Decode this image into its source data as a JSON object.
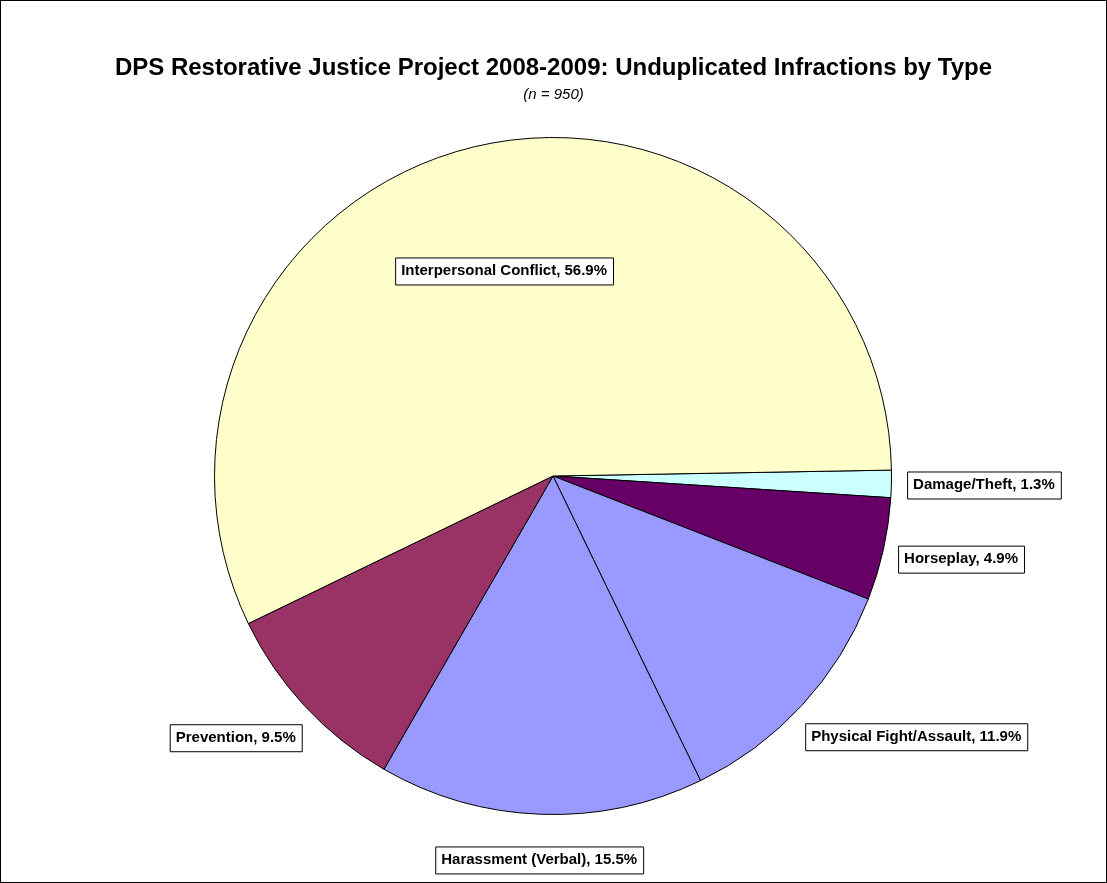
{
  "chart_data": {
    "type": "pie",
    "title": "DPS Restorative Justice Project 2008-2009: Unduplicated Infractions by Type",
    "subtitle": "(n = 950)",
    "categories": [
      "Damage/Theft",
      "Horseplay",
      "Physical Fight/Assault",
      "Harassment (Verbal)",
      "Prevention",
      "Interpersonal Conflict"
    ],
    "values": [
      1.3,
      4.9,
      11.9,
      15.5,
      9.5,
      56.9
    ],
    "value_labels": [
      "1.3%",
      "4.9%",
      "11.9%",
      "15.5%",
      "9.5%",
      "56.9%"
    ],
    "colors": [
      "#ccffff",
      "#660066",
      "#9999ff",
      "#9999ff",
      "#993366",
      "#ffffcc"
    ],
    "legend": false
  }
}
